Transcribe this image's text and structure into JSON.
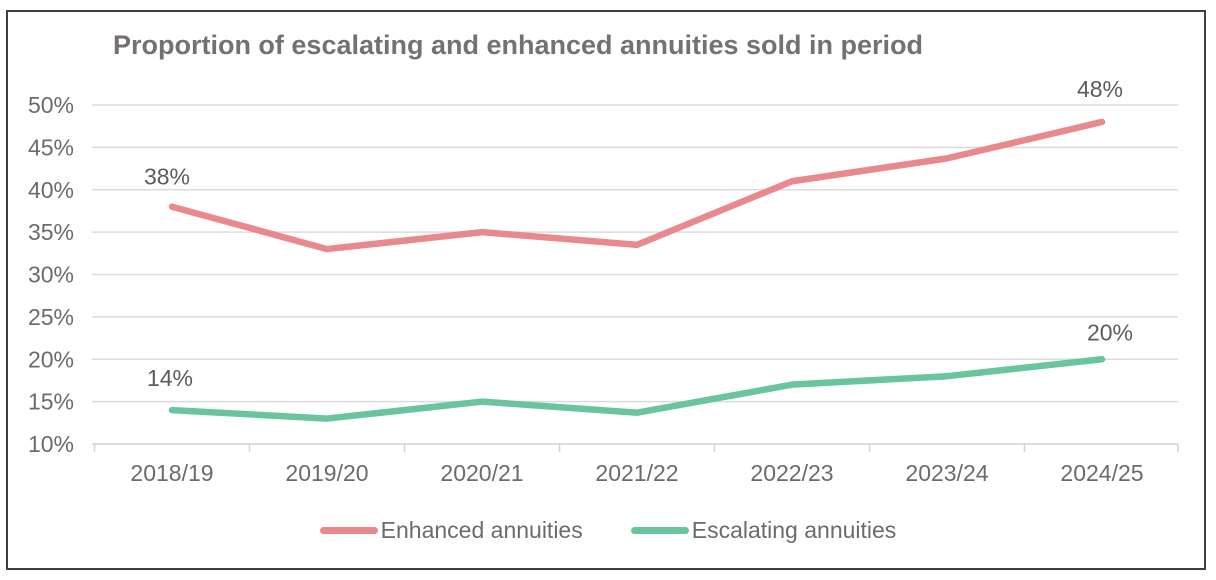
{
  "window": {
    "background_color": "#ffffff",
    "border_color": "#3e3e3e"
  },
  "colors": {
    "enhanced_line": "#e9898e",
    "escalating_line": "#6ac59d",
    "title_text": "#767171",
    "axis_text": "#6b6b6b",
    "data_label_text": "#5f5a5b",
    "gridline": "#dbdbdb",
    "axis_line": "#d2d2d2"
  },
  "chart_data": {
    "type": "line",
    "title": "Proportion of escalating and enhanced annuities sold in period",
    "categories": [
      "2018/19",
      "2019/20",
      "2020/21",
      "2021/22",
      "2022/23",
      "2023/24",
      "2024/25"
    ],
    "series": [
      {
        "name": "Enhanced annuities",
        "color": "#e9898e",
        "values": [
          38,
          33,
          35,
          33.5,
          41,
          43.7,
          48
        ]
      },
      {
        "name": "Escalating annuities",
        "color": "#6ac59d",
        "values": [
          14,
          13,
          15,
          13.7,
          17,
          18,
          20
        ]
      }
    ],
    "y_axis": {
      "min": 10,
      "max": 50,
      "step": 5,
      "tick_values": [
        50,
        45,
        40,
        35,
        30,
        25,
        20,
        15,
        10
      ],
      "tick_labels": [
        "50%",
        "45%",
        "40%",
        "35%",
        "30%",
        "25%",
        "20%",
        "15%",
        "10%"
      ]
    },
    "point_labels": [
      {
        "series": "Enhanced annuities",
        "category": "2018/19",
        "text": "38%"
      },
      {
        "series": "Enhanced annuities",
        "category": "2024/25",
        "text": "48%"
      },
      {
        "series": "Escalating annuities",
        "category": "2018/19",
        "text": "14%"
      },
      {
        "series": "Escalating annuities",
        "category": "2024/25",
        "text": "20%"
      }
    ],
    "legend": [
      "Enhanced annuities",
      "Escalating annuities"
    ],
    "legend_position": "bottom",
    "grid": true
  }
}
